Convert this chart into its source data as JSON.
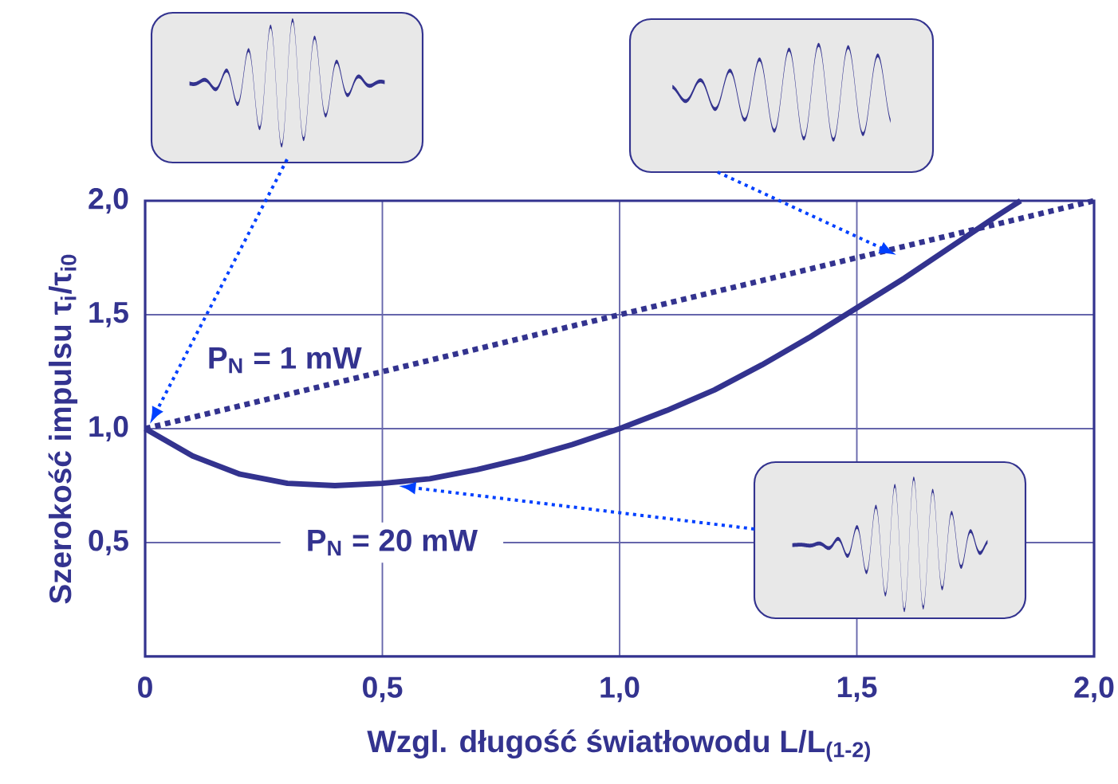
{
  "chart_data": {
    "type": "line",
    "xlabel": "Wzgl. długość światłowodu L/L$_{(1-2)}$",
    "ylabel": "Szerokość impulsu τ$_{i}$/τ$_{i0}$",
    "xlim": [
      0,
      2
    ],
    "ylim": [
      0,
      2
    ],
    "xticks": [
      {
        "value": 0,
        "label": "0"
      },
      {
        "value": 0.5,
        "label": "0,5"
      },
      {
        "value": 1,
        "label": "1,0"
      },
      {
        "value": 1.5,
        "label": "1,5"
      },
      {
        "value": 2,
        "label": "2,0"
      }
    ],
    "yticks": [
      {
        "value": 0,
        "label": null
      },
      {
        "value": 0.5,
        "label": "0,5"
      },
      {
        "value": 1,
        "label": "1,0"
      },
      {
        "value": 1.5,
        "label": "1,5"
      },
      {
        "value": 2,
        "label": "2,0"
      }
    ],
    "grid": true,
    "series": [
      {
        "name": "P$_{N}$ = 1 mW",
        "color": "#33338f",
        "line_style": "dotted",
        "x": [
          0,
          2
        ],
        "values": [
          1,
          2
        ]
      },
      {
        "name": "P$_{N}$ = 20 mW",
        "color": "#33338f",
        "line_style": "solid",
        "x": [
          0,
          0.1,
          0.2,
          0.3,
          0.4,
          0.5,
          0.6,
          0.7,
          0.8,
          0.9,
          1.0,
          1.1,
          1.2,
          1.3,
          1.4,
          1.5,
          1.6,
          1.7,
          1.8,
          1.845
        ],
        "values": [
          1,
          0.88,
          0.8,
          0.76,
          0.75,
          0.76,
          0.78,
          0.82,
          0.87,
          0.93,
          1.0,
          1.08,
          1.17,
          1.28,
          1.4,
          1.53,
          1.66,
          1.8,
          1.94,
          2.0
        ]
      }
    ]
  }
}
